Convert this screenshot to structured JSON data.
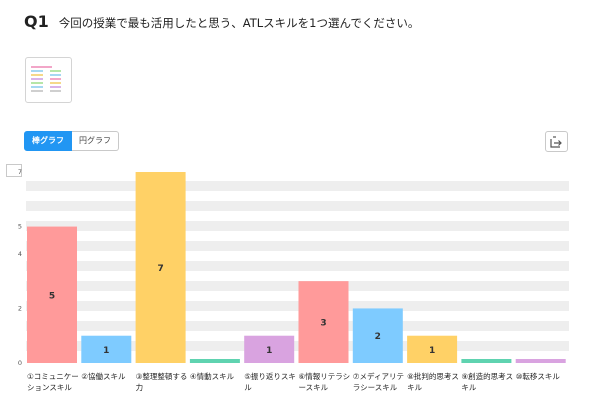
{
  "question": {
    "number": "Q1",
    "text": "今回の授業で最も活用したと思う、ATLスキルを1つ選んでください。"
  },
  "toggle": {
    "bar_label": "棒グラフ",
    "pie_label": "円グラフ",
    "selected": "bar"
  },
  "icons": {
    "thumbnail": "worksheet-thumbnail-icon",
    "export": "export-icon"
  },
  "chart_data": {
    "type": "bar",
    "categories": [
      "①コミュニケーションスキル",
      "②協働スキル",
      "③整理整頓する力",
      "④情動スキル",
      "⑤振り返りスキル",
      "⑥情報リテラシースキル",
      "⑦メディアリテラシースキル",
      "⑧批判的思考スキル",
      "⑨創造的思考スキル",
      "⑩転移スキル"
    ],
    "values": [
      5,
      1,
      7,
      0,
      1,
      3,
      2,
      1,
      0,
      0
    ],
    "bar_colors": [
      "#ff9a9a",
      "#7ecbff",
      "#ffd166",
      "#5fd3b0",
      "#d9a3e0",
      "#ff9a9a",
      "#7ecbff",
      "#ffd166",
      "#5fd3b0",
      "#d9a3e0"
    ],
    "value_labels_shown": [
      true,
      true,
      true,
      false,
      true,
      true,
      true,
      true,
      false,
      false
    ],
    "y_ticks": [
      0,
      2,
      4,
      5,
      7
    ],
    "ylim": [
      0,
      7
    ],
    "grid_bands": true,
    "title": "",
    "xlabel": "",
    "ylabel": ""
  }
}
